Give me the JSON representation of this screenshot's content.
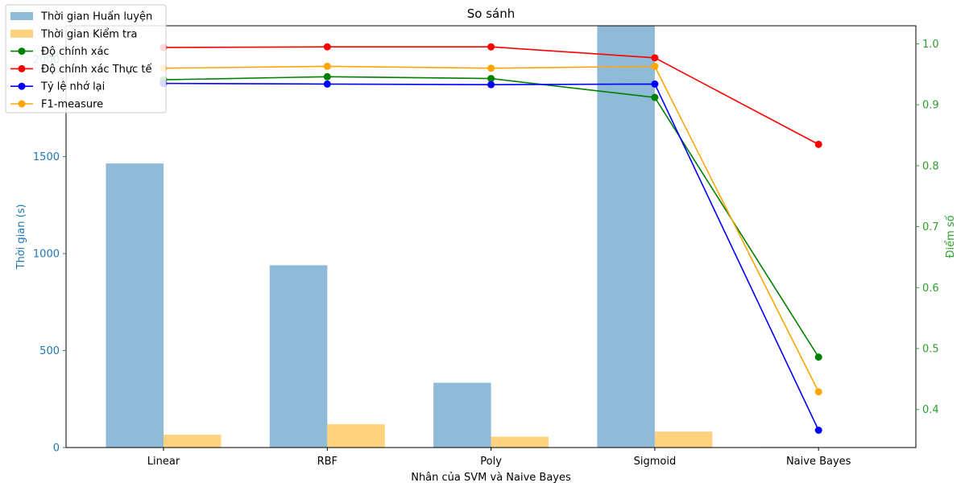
{
  "chart_data": {
    "type": "bar",
    "title": "So sánh",
    "xlabel": "Nhân của SVM và Naive Bayes",
    "ylabel_left": "Thời gian (s)",
    "ylabel_right": "Điểm số",
    "categories": [
      "Linear",
      "RBF",
      "Poly",
      "Sigmoid",
      "Naive Bayes"
    ],
    "ylim_left": [
      0,
      2175
    ],
    "ylim_right": [
      0.3376,
      1.0296
    ],
    "left_ticks": [
      0,
      500,
      1000,
      1500,
      2000
    ],
    "right_ticks": [
      0.4,
      0.5,
      0.6,
      0.7,
      0.8,
      0.9,
      1.0
    ],
    "left_tick_color": "#1f77b4",
    "right_tick_color": "#2ca02c",
    "bar_series": [
      {
        "name": "Thời gian Huấn luyện",
        "color": "#1f77b4",
        "opacity": 0.5,
        "values": [
          1465,
          940,
          334,
          2180,
          3
        ]
      },
      {
        "name": "Thời gian Kiểm tra",
        "color": "#ffa500",
        "opacity": 0.5,
        "values": [
          66,
          120,
          56,
          82,
          1
        ]
      }
    ],
    "line_series": [
      {
        "name": "Độ chính xác",
        "color": "#008000",
        "values": [
          0.941,
          0.946,
          0.943,
          0.912,
          0.486
        ]
      },
      {
        "name": "Độ chính xác Thực tế",
        "color": "#ff0000",
        "values": [
          0.994,
          0.995,
          0.995,
          0.977,
          0.835
        ]
      },
      {
        "name": "Tỷ lệ nhớ lại",
        "color": "#0000ff",
        "values": [
          0.935,
          0.934,
          0.933,
          0.934,
          0.366
        ]
      },
      {
        "name": "F1-measure",
        "color": "#ffa500",
        "values": [
          0.96,
          0.963,
          0.96,
          0.963,
          0.429
        ]
      }
    ],
    "legend_position": "upper-left",
    "grid": false
  }
}
